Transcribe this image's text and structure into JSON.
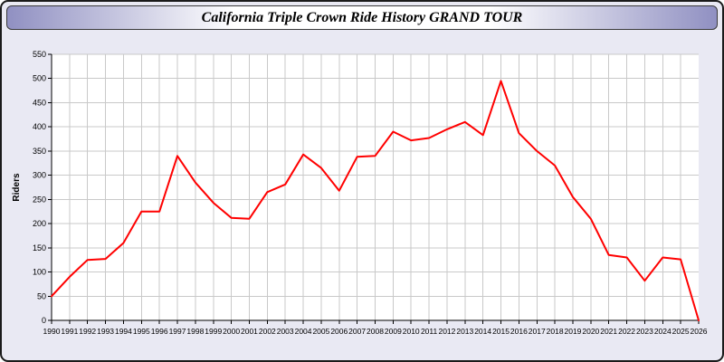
{
  "window": {
    "title": "California Triple Crown Ride History GRAND TOUR"
  },
  "chart_data": {
    "type": "line",
    "title": "California Triple Crown Ride History GRAND TOUR",
    "x": [
      1990,
      1991,
      1992,
      1993,
      1994,
      1995,
      1996,
      1997,
      1998,
      1999,
      2000,
      2001,
      2002,
      2003,
      2004,
      2005,
      2006,
      2007,
      2008,
      2009,
      2010,
      2011,
      2012,
      2013,
      2014,
      2015,
      2016,
      2017,
      2018,
      2019,
      2020,
      2021,
      2022,
      2023,
      2024,
      2025,
      2026
    ],
    "values": [
      50,
      90,
      125,
      127,
      160,
      225,
      225,
      340,
      285,
      243,
      212,
      210,
      265,
      281,
      343,
      315,
      268,
      338,
      340,
      390,
      372,
      377,
      395,
      410,
      383,
      495,
      387,
      350,
      320,
      255,
      210,
      135,
      130,
      82,
      130,
      126,
      0
    ],
    "series_name": "Riders",
    "xlabel": "",
    "ylabel": "Riders",
    "ylim": [
      0,
      550
    ],
    "ytick_step": 50,
    "layout": {
      "grid": true,
      "legend": "none",
      "plot_bg": "#ffffff",
      "page_bg": "#e9e9f3",
      "grid_color": "#c9c9c9",
      "axis_color": "#000000",
      "line_color": "#ff0000",
      "titlebar_edge": "#9090c2",
      "titlebar_center": "#ffffff"
    }
  }
}
